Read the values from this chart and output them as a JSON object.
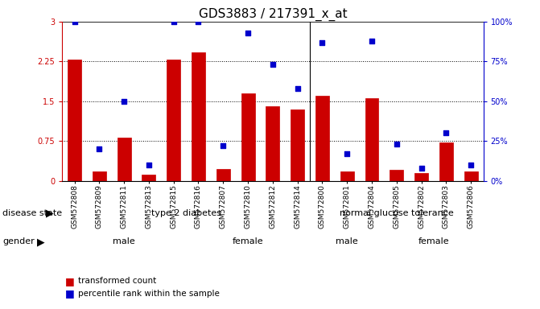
{
  "title": "GDS3883 / 217391_x_at",
  "samples": [
    "GSM572808",
    "GSM572809",
    "GSM572811",
    "GSM572813",
    "GSM572815",
    "GSM572816",
    "GSM572807",
    "GSM572810",
    "GSM572812",
    "GSM572814",
    "GSM572800",
    "GSM572801",
    "GSM572804",
    "GSM572805",
    "GSM572802",
    "GSM572803",
    "GSM572806"
  ],
  "bar_values": [
    2.28,
    0.18,
    0.82,
    0.12,
    2.28,
    2.42,
    0.22,
    1.65,
    1.4,
    1.35,
    1.6,
    0.18,
    1.55,
    0.2,
    0.15,
    0.72,
    0.18
  ],
  "dot_values": [
    100,
    20,
    50,
    10,
    100,
    100,
    22,
    93,
    73,
    58,
    87,
    17,
    88,
    23,
    8,
    30,
    10
  ],
  "bar_color": "#cc0000",
  "dot_color": "#0000cc",
  "ylim_left": [
    0,
    3
  ],
  "ylim_right": [
    0,
    100
  ],
  "yticks_left": [
    0,
    0.75,
    1.5,
    2.25,
    3
  ],
  "yticks_right": [
    0,
    25,
    50,
    75,
    100
  ],
  "ytick_labels_left": [
    "0",
    "0.75",
    "1.5",
    "2.25",
    "3"
  ],
  "ytick_labels_right": [
    "0%",
    "25%",
    "50%",
    "75%",
    "100%"
  ],
  "disease_state_groups": [
    {
      "label": "type 2 diabetes",
      "n_samples": 10,
      "color": "#90ee90"
    },
    {
      "label": "normal glucose tolerance",
      "n_samples": 7,
      "color": "#90ee90"
    }
  ],
  "gender_groups": [
    {
      "label": "male",
      "n_samples": 5,
      "color": "#dd88dd"
    },
    {
      "label": "female",
      "n_samples": 5,
      "color": "#dd88dd"
    },
    {
      "label": "male",
      "n_samples": 3,
      "color": "#dd88dd"
    },
    {
      "label": "female",
      "n_samples": 4,
      "color": "#dd88dd"
    }
  ],
  "legend_items": [
    {
      "label": "transformed count",
      "color": "#cc0000"
    },
    {
      "label": "percentile rank within the sample",
      "color": "#0000cc"
    }
  ],
  "disease_label": "disease state",
  "gender_label": "gender",
  "background_color": "#ffffff",
  "title_fontsize": 11,
  "tick_fontsize": 7,
  "annot_fontsize": 8
}
